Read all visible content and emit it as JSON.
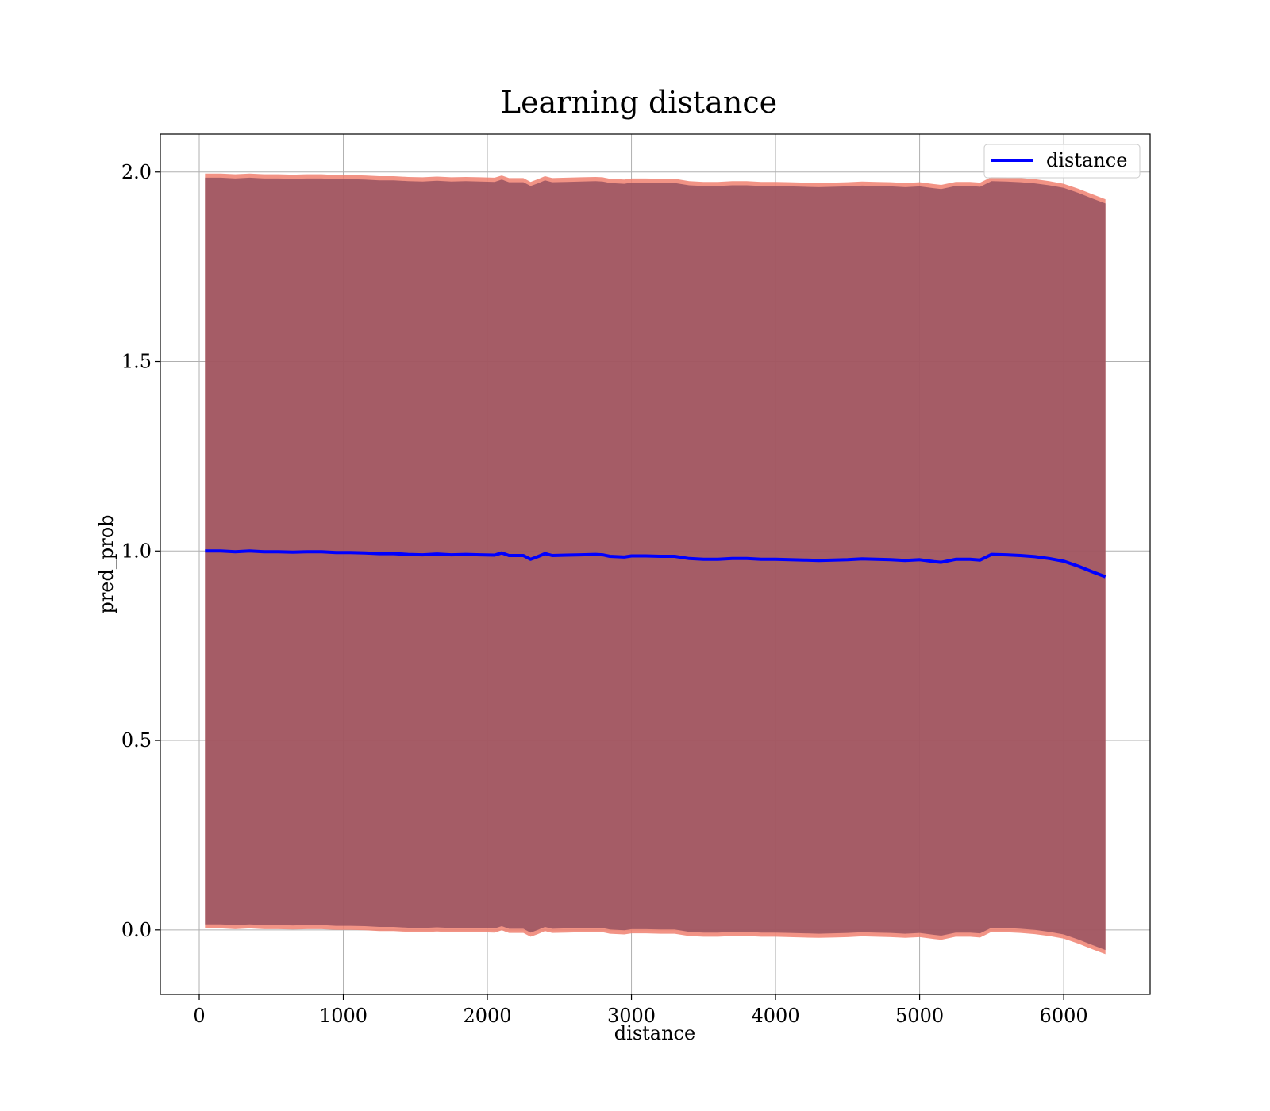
{
  "chart_data": {
    "type": "line",
    "title": "Learning distance",
    "xlabel": "distance",
    "ylabel": "pred_prob",
    "xlim": [
      -270,
      6600
    ],
    "ylim": [
      -0.17,
      2.1
    ],
    "x_ticks": [
      0,
      1000,
      2000,
      3000,
      4000,
      5000,
      6000
    ],
    "x_tick_labels": [
      "0",
      "1000",
      "2000",
      "3000",
      "4000",
      "5000",
      "6000"
    ],
    "y_ticks": [
      0.0,
      0.5,
      1.0,
      1.5,
      2.0
    ],
    "y_tick_labels": [
      "0.0",
      "0.5",
      "1.0",
      "1.5",
      "2.0"
    ],
    "grid": true,
    "legend_position": "top-right",
    "colors": {
      "line": "#0000ff",
      "band_outer": "#f08070",
      "band_inner": "#8b4a5c",
      "grid": "#b0b0b0"
    },
    "series": [
      {
        "name": "distance",
        "x": [
          40,
          150,
          250,
          350,
          450,
          550,
          650,
          750,
          850,
          950,
          1050,
          1150,
          1250,
          1350,
          1450,
          1550,
          1650,
          1750,
          1850,
          1950,
          2050,
          2100,
          2150,
          2250,
          2300,
          2350,
          2400,
          2450,
          2550,
          2650,
          2750,
          2800,
          2850,
          2950,
          3000,
          3100,
          3200,
          3300,
          3400,
          3500,
          3600,
          3700,
          3800,
          3900,
          4000,
          4100,
          4200,
          4300,
          4400,
          4500,
          4600,
          4700,
          4800,
          4900,
          5000,
          5100,
          5150,
          5250,
          5350,
          5420,
          5500,
          5600,
          5700,
          5800,
          5900,
          6000,
          6100,
          6200,
          6290
        ],
        "y": [
          1.0,
          1.0,
          0.998,
          1.0,
          0.998,
          0.998,
          0.997,
          0.998,
          0.998,
          0.996,
          0.996,
          0.995,
          0.993,
          0.993,
          0.991,
          0.99,
          0.992,
          0.99,
          0.991,
          0.99,
          0.989,
          0.995,
          0.988,
          0.988,
          0.978,
          0.985,
          0.993,
          0.988,
          0.989,
          0.99,
          0.991,
          0.99,
          0.986,
          0.984,
          0.987,
          0.987,
          0.986,
          0.986,
          0.98,
          0.978,
          0.978,
          0.98,
          0.98,
          0.978,
          0.978,
          0.977,
          0.976,
          0.975,
          0.976,
          0.977,
          0.979,
          0.978,
          0.977,
          0.975,
          0.977,
          0.972,
          0.97,
          0.978,
          0.978,
          0.976,
          0.991,
          0.99,
          0.988,
          0.985,
          0.98,
          0.973,
          0.96,
          0.945,
          0.932
        ]
      }
    ],
    "band": {
      "x_range": [
        40,
        6290
      ],
      "outer_offset": 0.996,
      "inner_offset": 0.985
    }
  }
}
